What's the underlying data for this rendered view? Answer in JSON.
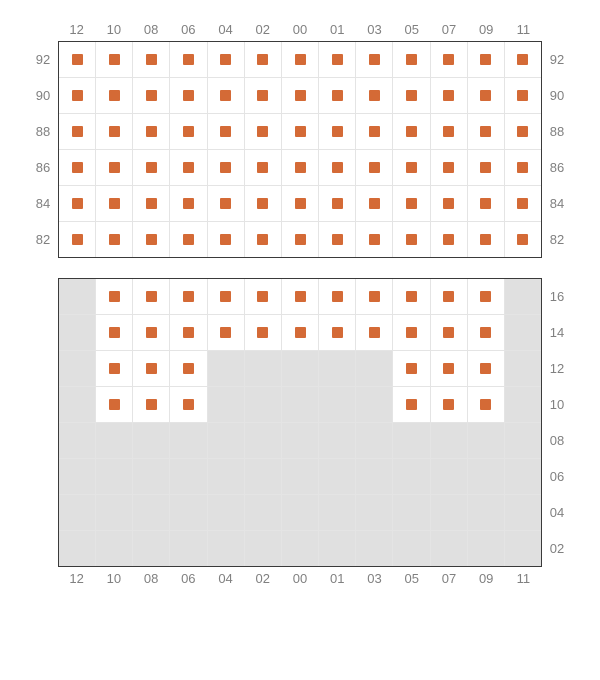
{
  "colors": {
    "marker": "#d46a36",
    "empty_bg": "#e0e0e0",
    "available_bg": "#ffffff",
    "label": "#808080",
    "grid_border": "#3a3a3a",
    "cell_border": "#e4e4e4"
  },
  "columns": [
    "12",
    "10",
    "08",
    "06",
    "04",
    "02",
    "00",
    "01",
    "03",
    "05",
    "07",
    "09",
    "11"
  ],
  "section_top": {
    "show_col_labels_top": true,
    "show_col_labels_bottom": false,
    "show_row_labels_left": true,
    "show_row_labels_right": true,
    "row_labels": [
      "92",
      "90",
      "88",
      "86",
      "84",
      "82"
    ],
    "cells": [
      [
        1,
        1,
        1,
        1,
        1,
        1,
        1,
        1,
        1,
        1,
        1,
        1,
        1
      ],
      [
        1,
        1,
        1,
        1,
        1,
        1,
        1,
        1,
        1,
        1,
        1,
        1,
        1
      ],
      [
        1,
        1,
        1,
        1,
        1,
        1,
        1,
        1,
        1,
        1,
        1,
        1,
        1
      ],
      [
        1,
        1,
        1,
        1,
        1,
        1,
        1,
        1,
        1,
        1,
        1,
        1,
        1
      ],
      [
        1,
        1,
        1,
        1,
        1,
        1,
        1,
        1,
        1,
        1,
        1,
        1,
        1
      ],
      [
        1,
        1,
        1,
        1,
        1,
        1,
        1,
        1,
        1,
        1,
        1,
        1,
        1
      ]
    ]
  },
  "section_bottom": {
    "show_col_labels_top": false,
    "show_col_labels_bottom": true,
    "show_row_labels_left": false,
    "show_row_labels_right": true,
    "row_labels": [
      "16",
      "14",
      "12",
      "10",
      "08",
      "06",
      "04",
      "02"
    ],
    "cells": [
      [
        0,
        1,
        1,
        1,
        1,
        1,
        1,
        1,
        1,
        1,
        1,
        1,
        0
      ],
      [
        0,
        1,
        1,
        1,
        1,
        1,
        1,
        1,
        1,
        1,
        1,
        1,
        0
      ],
      [
        0,
        1,
        1,
        1,
        0,
        0,
        0,
        0,
        0,
        1,
        1,
        1,
        0
      ],
      [
        0,
        1,
        1,
        1,
        0,
        0,
        0,
        0,
        0,
        1,
        1,
        1,
        0
      ],
      [
        0,
        0,
        0,
        0,
        0,
        0,
        0,
        0,
        0,
        0,
        0,
        0,
        0
      ],
      [
        0,
        0,
        0,
        0,
        0,
        0,
        0,
        0,
        0,
        0,
        0,
        0,
        0
      ],
      [
        0,
        0,
        0,
        0,
        0,
        0,
        0,
        0,
        0,
        0,
        0,
        0,
        0
      ],
      [
        0,
        0,
        0,
        0,
        0,
        0,
        0,
        0,
        0,
        0,
        0,
        0,
        0
      ]
    ]
  }
}
